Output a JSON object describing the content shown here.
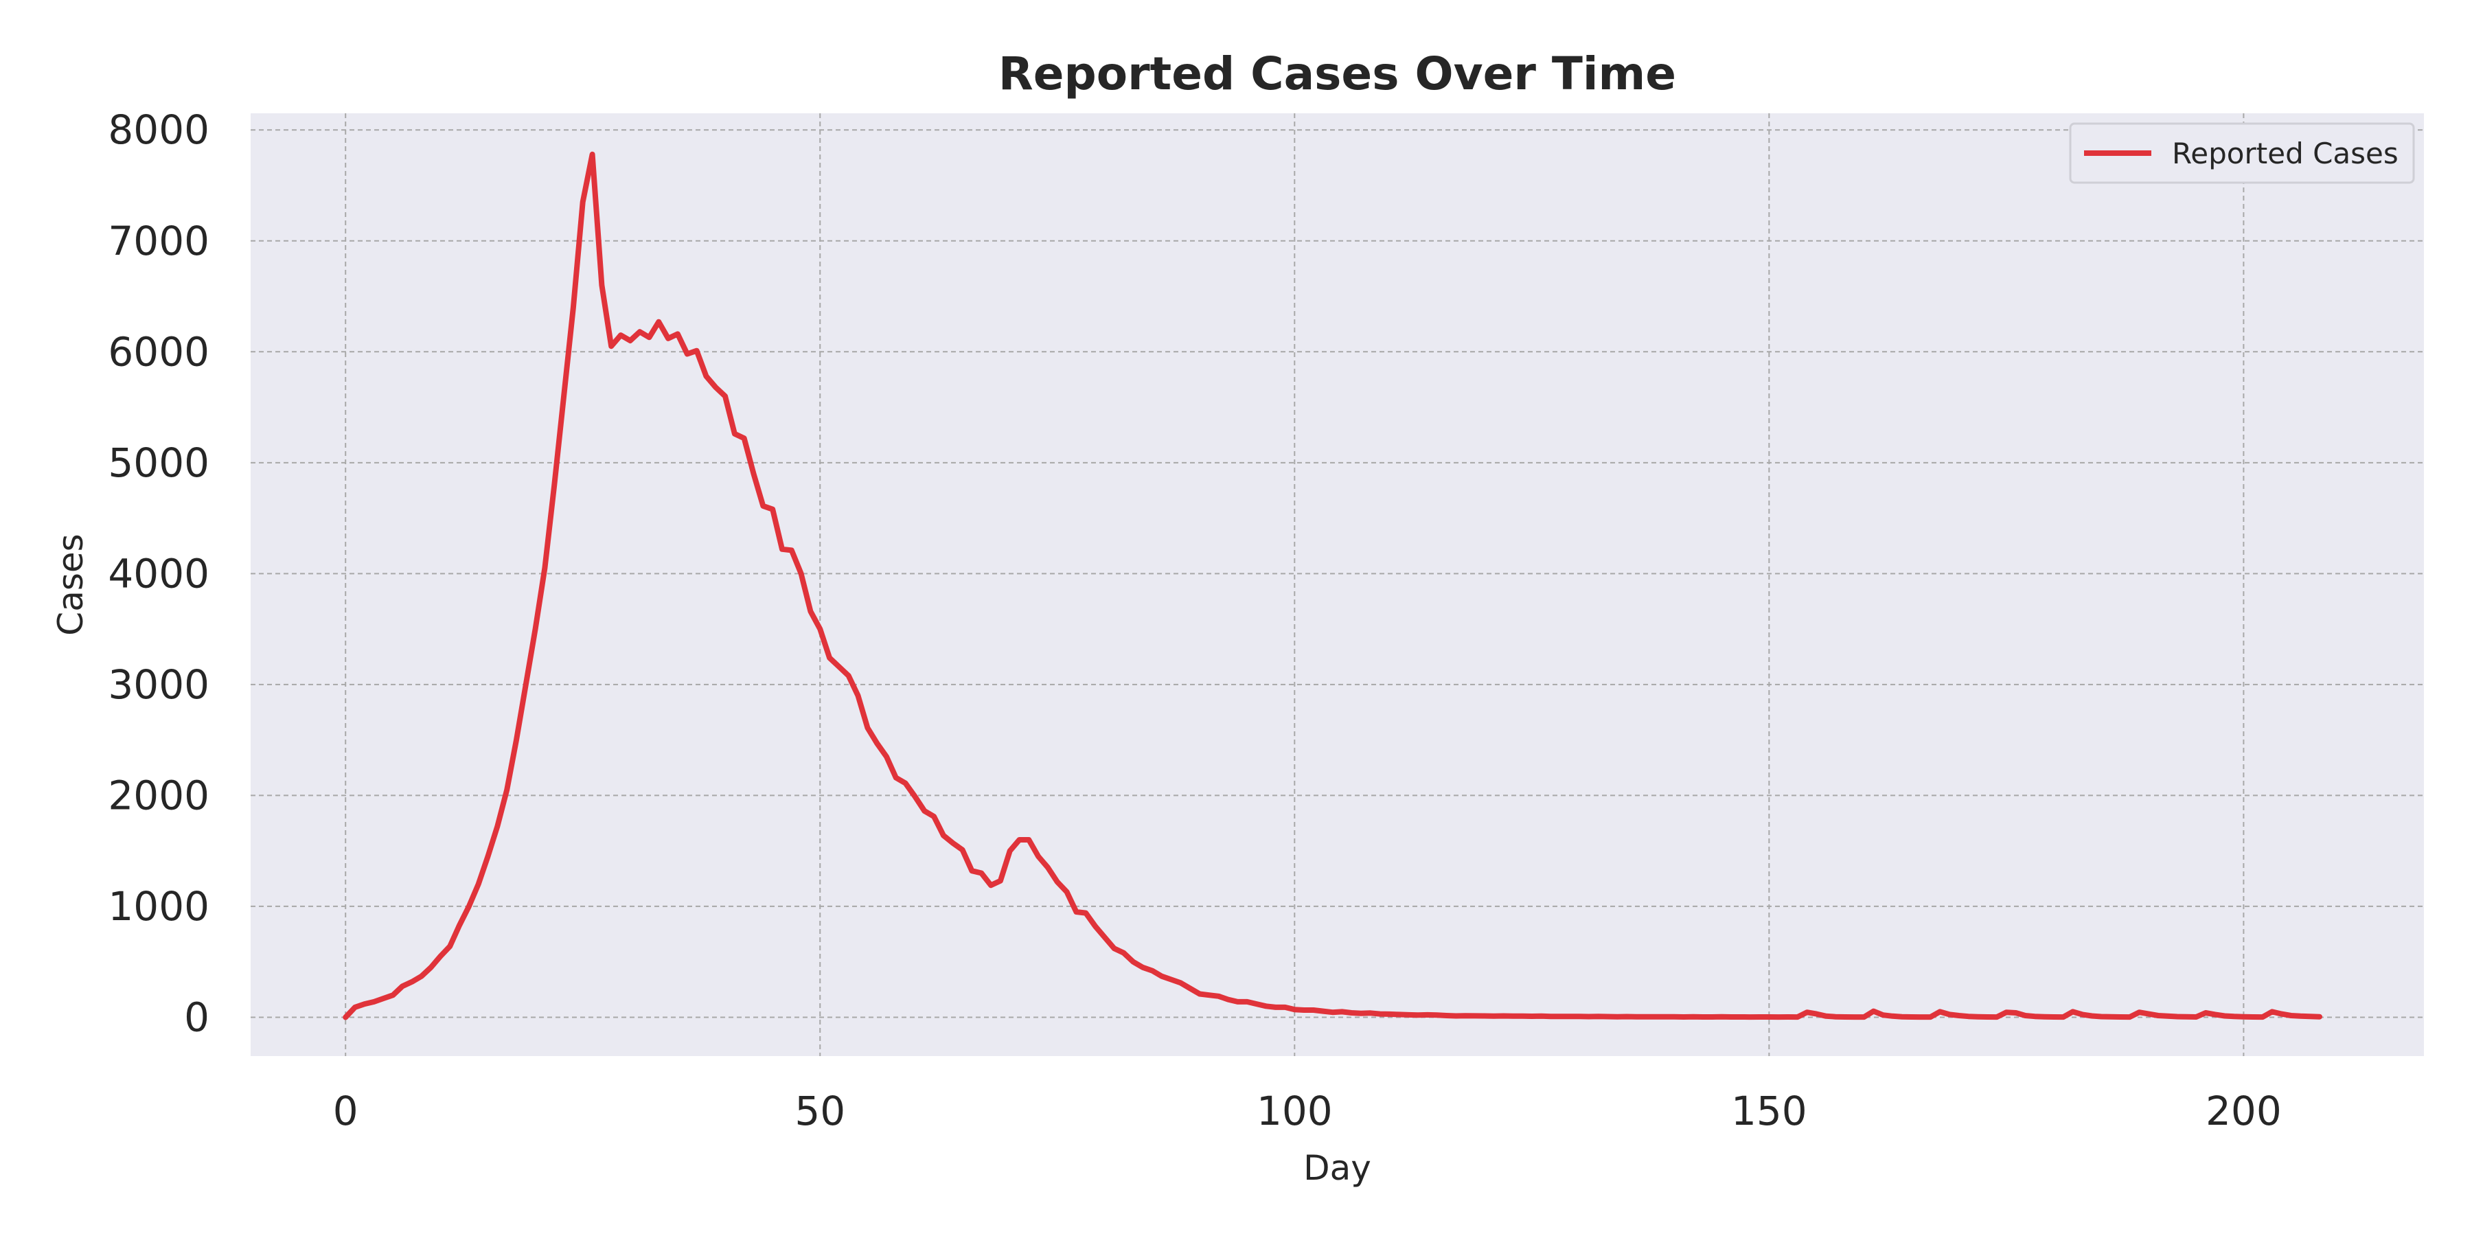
{
  "chart_data": {
    "type": "line",
    "title": "Reported Cases Over Time",
    "xlabel": "Day",
    "ylabel": "Cases",
    "xlim": [
      -10,
      219
    ],
    "ylim": [
      -350,
      8150
    ],
    "xticks": [
      0,
      50,
      100,
      150,
      200
    ],
    "yticks": [
      0,
      1000,
      2000,
      3000,
      4000,
      5000,
      6000,
      7000,
      8000
    ],
    "grid": true,
    "legend_position": "top-right",
    "colors": {
      "background": "#eaeaf2",
      "grid": "#a8a8a8",
      "line": "#e0333a",
      "text": "#262626"
    },
    "series": [
      {
        "name": "Reported Cases",
        "points": [
          [
            0,
            0
          ],
          [
            1,
            90
          ],
          [
            2,
            120
          ],
          [
            3,
            140
          ],
          [
            4,
            170
          ],
          [
            5,
            200
          ],
          [
            6,
            280
          ],
          [
            7,
            320
          ],
          [
            8,
            370
          ],
          [
            9,
            450
          ],
          [
            10,
            550
          ],
          [
            11,
            640
          ],
          [
            12,
            830
          ],
          [
            13,
            1000
          ],
          [
            14,
            1200
          ],
          [
            15,
            1450
          ],
          [
            16,
            1720
          ],
          [
            17,
            2050
          ],
          [
            18,
            2500
          ],
          [
            19,
            3000
          ],
          [
            20,
            3500
          ],
          [
            21,
            4050
          ],
          [
            22,
            4800
          ],
          [
            23,
            5600
          ],
          [
            24,
            6400
          ],
          [
            25,
            7350
          ],
          [
            26,
            7780
          ],
          [
            27,
            6600
          ],
          [
            28,
            6050
          ],
          [
            29,
            6150
          ],
          [
            30,
            6100
          ],
          [
            31,
            6180
          ],
          [
            32,
            6130
          ],
          [
            33,
            6270
          ],
          [
            34,
            6120
          ],
          [
            35,
            6160
          ],
          [
            36,
            5980
          ],
          [
            37,
            6010
          ],
          [
            38,
            5780
          ],
          [
            39,
            5680
          ],
          [
            40,
            5600
          ],
          [
            41,
            5260
          ],
          [
            42,
            5220
          ],
          [
            43,
            4900
          ],
          [
            44,
            4610
          ],
          [
            45,
            4580
          ],
          [
            46,
            4220
          ],
          [
            47,
            4210
          ],
          [
            48,
            4000
          ],
          [
            49,
            3660
          ],
          [
            50,
            3500
          ],
          [
            51,
            3240
          ],
          [
            52,
            3160
          ],
          [
            53,
            3080
          ],
          [
            54,
            2900
          ],
          [
            55,
            2610
          ],
          [
            56,
            2470
          ],
          [
            57,
            2350
          ],
          [
            58,
            2160
          ],
          [
            59,
            2110
          ],
          [
            60,
            1990
          ],
          [
            61,
            1860
          ],
          [
            62,
            1810
          ],
          [
            63,
            1640
          ],
          [
            64,
            1570
          ],
          [
            65,
            1510
          ],
          [
            66,
            1320
          ],
          [
            67,
            1300
          ],
          [
            68,
            1190
          ],
          [
            69,
            1230
          ],
          [
            70,
            1500
          ],
          [
            71,
            1600
          ],
          [
            72,
            1600
          ],
          [
            73,
            1450
          ],
          [
            74,
            1350
          ],
          [
            75,
            1220
          ],
          [
            76,
            1130
          ],
          [
            77,
            950
          ],
          [
            78,
            940
          ],
          [
            79,
            820
          ],
          [
            80,
            720
          ],
          [
            81,
            620
          ],
          [
            82,
            580
          ],
          [
            83,
            500
          ],
          [
            84,
            450
          ],
          [
            85,
            420
          ],
          [
            86,
            370
          ],
          [
            87,
            340
          ],
          [
            88,
            310
          ],
          [
            89,
            260
          ],
          [
            90,
            210
          ],
          [
            91,
            200
          ],
          [
            92,
            190
          ],
          [
            93,
            160
          ],
          [
            94,
            140
          ],
          [
            95,
            140
          ],
          [
            96,
            120
          ],
          [
            97,
            100
          ],
          [
            98,
            90
          ],
          [
            99,
            90
          ],
          [
            100,
            70
          ],
          [
            101,
            65
          ],
          [
            102,
            65
          ],
          [
            103,
            55
          ],
          [
            104,
            45
          ],
          [
            105,
            50
          ],
          [
            106,
            40
          ],
          [
            107,
            35
          ],
          [
            108,
            38
          ],
          [
            109,
            30
          ],
          [
            110,
            28
          ],
          [
            111,
            25
          ],
          [
            112,
            22
          ],
          [
            113,
            20
          ],
          [
            114,
            22
          ],
          [
            115,
            20
          ],
          [
            116,
            15
          ],
          [
            117,
            12
          ],
          [
            118,
            14
          ],
          [
            119,
            13
          ],
          [
            120,
            12
          ],
          [
            121,
            10
          ],
          [
            122,
            12
          ],
          [
            123,
            11
          ],
          [
            124,
            10
          ],
          [
            125,
            9
          ],
          [
            126,
            10
          ],
          [
            127,
            8
          ],
          [
            128,
            7
          ],
          [
            129,
            8
          ],
          [
            130,
            7
          ],
          [
            131,
            6
          ],
          [
            132,
            7
          ],
          [
            133,
            6
          ],
          [
            134,
            5
          ],
          [
            135,
            6
          ],
          [
            136,
            5
          ],
          [
            137,
            5
          ],
          [
            138,
            4
          ],
          [
            139,
            4
          ],
          [
            140,
            4
          ],
          [
            141,
            3
          ],
          [
            142,
            4
          ],
          [
            143,
            3
          ],
          [
            144,
            3
          ],
          [
            145,
            4
          ],
          [
            146,
            3
          ],
          [
            147,
            3
          ],
          [
            148,
            2
          ],
          [
            149,
            3
          ],
          [
            150,
            3
          ],
          [
            151,
            2
          ],
          [
            152,
            3
          ],
          [
            153,
            2
          ],
          [
            154,
            45
          ],
          [
            155,
            30
          ],
          [
            156,
            10
          ],
          [
            157,
            5
          ],
          [
            158,
            3
          ],
          [
            159,
            2
          ],
          [
            160,
            2
          ],
          [
            161,
            55
          ],
          [
            162,
            20
          ],
          [
            163,
            10
          ],
          [
            164,
            5
          ],
          [
            165,
            3
          ],
          [
            166,
            2
          ],
          [
            167,
            2
          ],
          [
            168,
            50
          ],
          [
            169,
            25
          ],
          [
            170,
            15
          ],
          [
            171,
            8
          ],
          [
            172,
            5
          ],
          [
            173,
            3
          ],
          [
            174,
            2
          ],
          [
            175,
            45
          ],
          [
            176,
            40
          ],
          [
            177,
            15
          ],
          [
            178,
            8
          ],
          [
            179,
            5
          ],
          [
            180,
            3
          ],
          [
            181,
            2
          ],
          [
            182,
            50
          ],
          [
            183,
            25
          ],
          [
            184,
            12
          ],
          [
            185,
            6
          ],
          [
            186,
            4
          ],
          [
            187,
            3
          ],
          [
            188,
            2
          ],
          [
            189,
            45
          ],
          [
            190,
            30
          ],
          [
            191,
            15
          ],
          [
            192,
            10
          ],
          [
            193,
            6
          ],
          [
            194,
            4
          ],
          [
            195,
            3
          ],
          [
            196,
            40
          ],
          [
            197,
            25
          ],
          [
            198,
            12
          ],
          [
            199,
            7
          ],
          [
            200,
            5
          ],
          [
            201,
            3
          ],
          [
            202,
            2
          ],
          [
            203,
            50
          ],
          [
            204,
            30
          ],
          [
            205,
            15
          ],
          [
            206,
            10
          ],
          [
            207,
            8
          ],
          [
            208,
            5
          ]
        ]
      }
    ]
  }
}
